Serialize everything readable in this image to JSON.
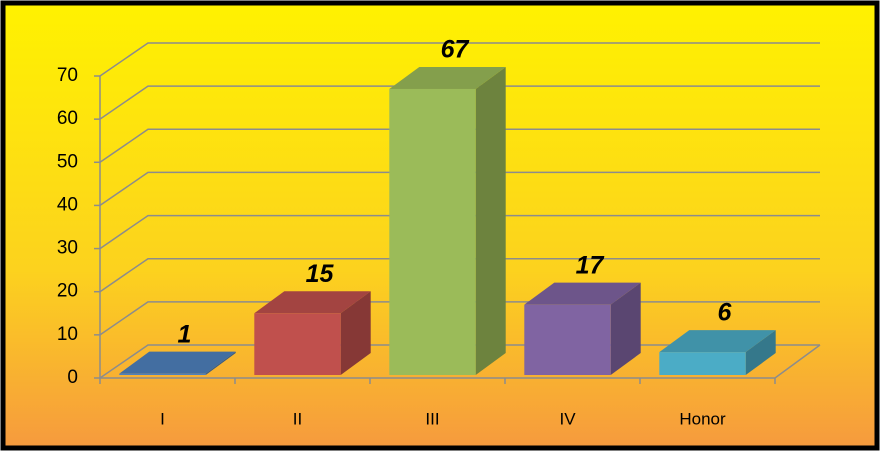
{
  "chart_data": {
    "type": "bar3d",
    "categories": [
      "I",
      "II",
      "III",
      "IV",
      "Honor"
    ],
    "values": [
      1,
      15,
      67,
      17,
      6
    ],
    "colors": [
      "#4f81bd",
      "#c0504d",
      "#9bbb59",
      "#8064a2",
      "#4bacc6"
    ],
    "ylim": [
      0,
      70
    ],
    "yticks": [
      0,
      10,
      20,
      30,
      40,
      50,
      60,
      70
    ],
    "grid": true
  }
}
